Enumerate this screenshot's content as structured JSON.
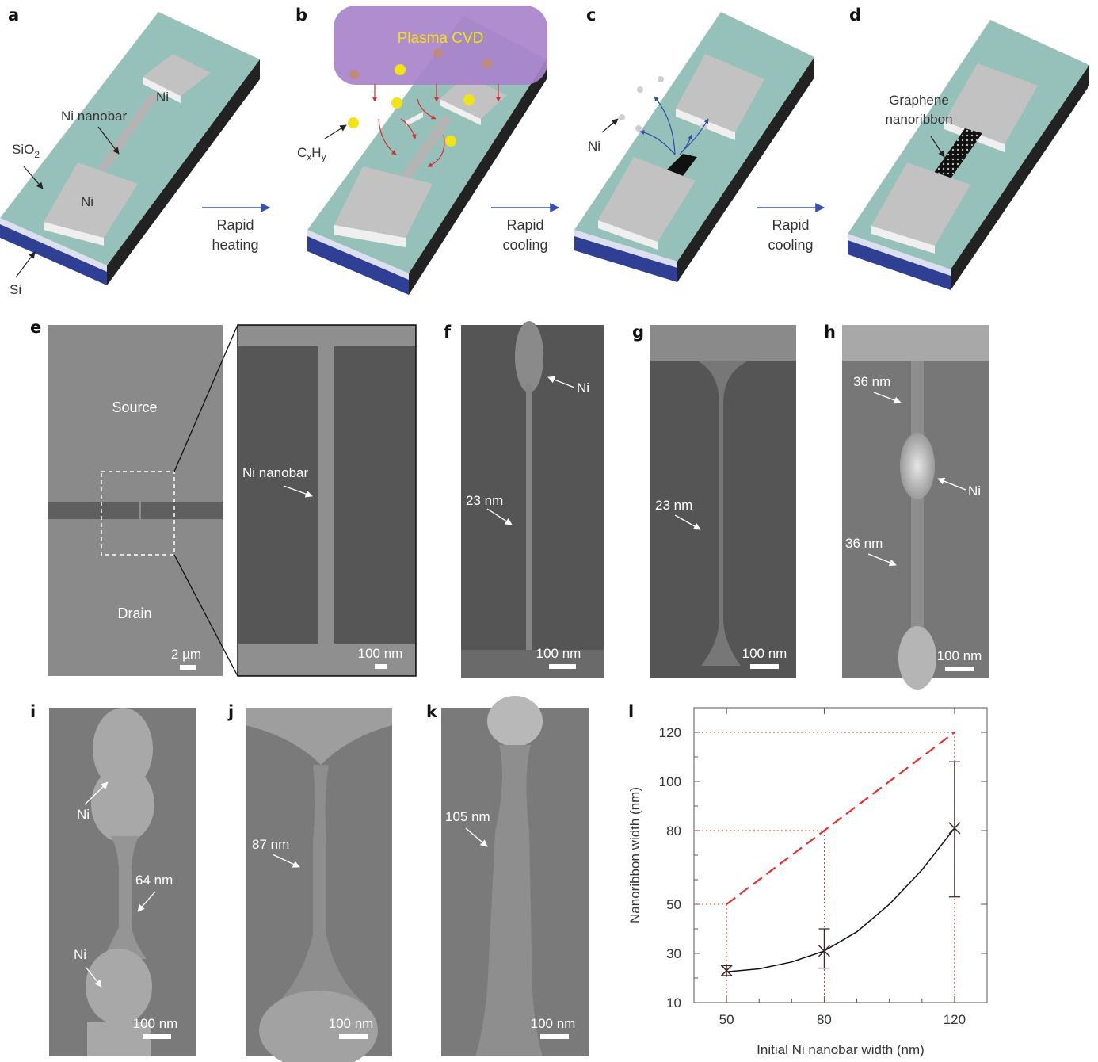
{
  "panels": {
    "a": {
      "label": "a",
      "ni_top": "Ni",
      "ni_bottom": "Ni",
      "nanobar": "Ni nanobar",
      "sio2": "SiO",
      "sio2_sub": "2",
      "si": "Si"
    },
    "b": {
      "label": "b",
      "plasma": "Plasma CVD",
      "cxhy_c": "C",
      "cxhy_x": "x",
      "cxhy_h": "H",
      "cxhy_y": "y"
    },
    "c": {
      "label": "c",
      "ni": "Ni"
    },
    "d": {
      "label": "d",
      "gnr_line1": "Graphene",
      "gnr_line2": "nanoribbon"
    },
    "e": {
      "label": "e",
      "source": "Source",
      "drain": "Drain",
      "scale_left": "2 µm",
      "nanobar": "Ni nanobar",
      "scale_right": "100 nm"
    },
    "f": {
      "label": "f",
      "ni": "Ni",
      "width": "23 nm",
      "scale": "100 nm"
    },
    "g": {
      "label": "g",
      "width": "23 nm",
      "scale": "100 nm"
    },
    "h": {
      "label": "h",
      "width_top": "36 nm",
      "ni": "Ni",
      "width_bottom": "36 nm",
      "scale": "100 nm"
    },
    "i": {
      "label": "i",
      "ni_top": "Ni",
      "width": "64 nm",
      "ni_bottom": "Ni",
      "scale": "100 nm"
    },
    "j": {
      "label": "j",
      "width": "87 nm",
      "scale": "100 nm"
    },
    "k": {
      "label": "k",
      "width": "105 nm",
      "scale": "100 nm"
    },
    "l": {
      "label": "l"
    }
  },
  "arrows": {
    "heating_line1": "Rapid",
    "heating_line2": "heating",
    "cooling1_line1": "Rapid",
    "cooling1_line2": "cooling",
    "cooling2_line1": "Rapid",
    "cooling2_line2": "cooling"
  },
  "colors": {
    "sio2": "#96c1ba",
    "si": "#2e3f94",
    "ni": "#bdbdbd",
    "plasma": "#a883cb",
    "precursor": "#f2e312",
    "ideal_line": "#e53030",
    "guide": "#e53030",
    "fit": "#111111"
  },
  "chart_data": {
    "type": "scatter",
    "xlabel": "Initial Ni nanobar width (nm)",
    "ylabel": "Nanoribbon width (nm)",
    "x_ticks": [
      "50",
      "80",
      "120"
    ],
    "y_ticks": [
      "10",
      "30",
      "50",
      "80",
      "100",
      "120"
    ],
    "xlim": [
      40,
      130
    ],
    "ylim": [
      10,
      130
    ],
    "grid": false,
    "points": [
      {
        "x": 50,
        "y": 23,
        "err_low": 21,
        "err_high": 25
      },
      {
        "x": 80,
        "y": 31,
        "err_low": 24,
        "err_high": 40
      },
      {
        "x": 120,
        "y": 81,
        "err_low": 53,
        "err_high": 108
      }
    ],
    "ideal_line": {
      "style": "dashed",
      "x": [
        50,
        120
      ],
      "y": [
        50,
        120
      ]
    },
    "fit_curve": {
      "style": "solid",
      "x": [
        50,
        60,
        70,
        80,
        90,
        100,
        110,
        120
      ],
      "y": [
        22.5,
        23.7,
        26.5,
        31,
        38.8,
        50,
        64,
        81
      ]
    }
  }
}
